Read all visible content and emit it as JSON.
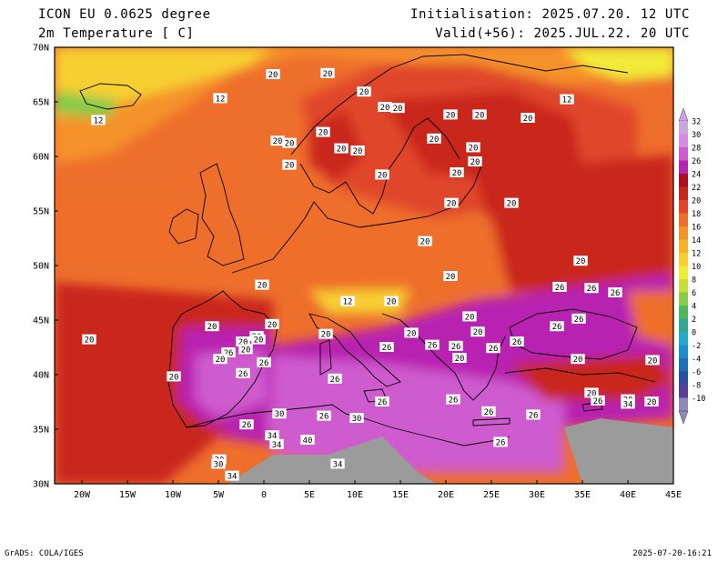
{
  "header": {
    "model": "ICON EU 0.0625 degree",
    "variable": "2m Temperature [ C]",
    "init": "Initialisation: 2025.07.20. 12 UTC",
    "valid": "Valid(+56): 2025.JUL.22. 20 UTC"
  },
  "lat_labels": [
    "70N",
    "65N",
    "60N",
    "55N",
    "50N",
    "45N",
    "40N",
    "35N",
    "30N"
  ],
  "lon_labels": [
    "20W",
    "15W",
    "10W",
    "5W",
    "0",
    "5E",
    "10E",
    "15E",
    "20E",
    "25E",
    "30E",
    "35E",
    "40E",
    "45E"
  ],
  "colorbar": {
    "labels": [
      "32",
      "30",
      "28",
      "26",
      "24",
      "22",
      "20",
      "18",
      "16",
      "14",
      "12",
      "10",
      "8",
      "6",
      "4",
      "2",
      "0",
      "-2",
      "-4",
      "-6",
      "-8",
      "-10"
    ],
    "colors": [
      "#c9a6de",
      "#d98ae0",
      "#cf5ccf",
      "#b824b0",
      "#ad0f1f",
      "#c9261c",
      "#e0472a",
      "#ee6e2c",
      "#f5922c",
      "#f6b12d",
      "#f6cf30",
      "#f1ea38",
      "#c8df3a",
      "#88cb4a",
      "#4fb85e",
      "#2fa890",
      "#27a8c8",
      "#1c8ed0",
      "#1c6fb8",
      "#2a4f9e",
      "#5a3f96",
      "#8e8ab8"
    ]
  },
  "contour_labels": [
    {
      "text": "20",
      "lon": 1,
      "lat": 67.5
    },
    {
      "text": "20",
      "lon": 7,
      "lat": 67.6
    },
    {
      "text": "12",
      "lon": -4.8,
      "lat": 65.3
    },
    {
      "text": "12",
      "lon": -18.2,
      "lat": 63.3
    },
    {
      "text": "12",
      "lon": 33.3,
      "lat": 65.2
    },
    {
      "text": "20",
      "lon": 11,
      "lat": 65.9
    },
    {
      "text": "20",
      "lon": 13.3,
      "lat": 64.5
    },
    {
      "text": "20",
      "lon": 14.7,
      "lat": 64.4
    },
    {
      "text": "20",
      "lon": 20.5,
      "lat": 63.8
    },
    {
      "text": "20",
      "lon": 23.7,
      "lat": 63.8
    },
    {
      "text": "20",
      "lon": 29,
      "lat": 63.5
    },
    {
      "text": "20",
      "lon": 6.5,
      "lat": 62.2
    },
    {
      "text": "20",
      "lon": 1.5,
      "lat": 61.4
    },
    {
      "text": "20",
      "lon": 2.8,
      "lat": 61.2
    },
    {
      "text": "20",
      "lon": 8.5,
      "lat": 60.7
    },
    {
      "text": "20",
      "lon": 10.3,
      "lat": 60.5
    },
    {
      "text": "20",
      "lon": 18.7,
      "lat": 61.6
    },
    {
      "text": "20",
      "lon": 23,
      "lat": 60.8
    },
    {
      "text": "20",
      "lon": 2.8,
      "lat": 59.2
    },
    {
      "text": "20",
      "lon": 13,
      "lat": 58.3
    },
    {
      "text": "20",
      "lon": 21.2,
      "lat": 58.5
    },
    {
      "text": "20",
      "lon": 23.2,
      "lat": 59.5
    },
    {
      "text": "20",
      "lon": 20.6,
      "lat": 55.7
    },
    {
      "text": "20",
      "lon": 27.2,
      "lat": 55.7
    },
    {
      "text": "20",
      "lon": 17.7,
      "lat": 52.2
    },
    {
      "text": "20",
      "lon": 34.8,
      "lat": 50.4
    },
    {
      "text": "20",
      "lon": 20.5,
      "lat": 49
    },
    {
      "text": "20",
      "lon": -0.2,
      "lat": 48.2
    },
    {
      "text": "12",
      "lon": 9.2,
      "lat": 46.7
    },
    {
      "text": "20",
      "lon": 14,
      "lat": 46.7
    },
    {
      "text": "26",
      "lon": 32.5,
      "lat": 48
    },
    {
      "text": "26",
      "lon": 36,
      "lat": 47.9
    },
    {
      "text": "26",
      "lon": 38.6,
      "lat": 47.5
    },
    {
      "text": "20",
      "lon": 22.6,
      "lat": 45.3
    },
    {
      "text": "26",
      "lon": 32.2,
      "lat": 44.4
    },
    {
      "text": "26",
      "lon": 34.6,
      "lat": 45.1
    },
    {
      "text": "20",
      "lon": -5.7,
      "lat": 44.4
    },
    {
      "text": "20",
      "lon": 0.9,
      "lat": 44.6
    },
    {
      "text": "20",
      "lon": 6.8,
      "lat": 43.7
    },
    {
      "text": "20",
      "lon": 16.2,
      "lat": 43.8
    },
    {
      "text": "20",
      "lon": 23.5,
      "lat": 43.9
    },
    {
      "text": "20",
      "lon": -0.8,
      "lat": 43.5
    },
    {
      "text": "20",
      "lon": -19.2,
      "lat": 43.2
    },
    {
      "text": "20",
      "lon": -2.3,
      "lat": 43
    },
    {
      "text": "20",
      "lon": -0.6,
      "lat": 43.2
    },
    {
      "text": "26",
      "lon": 13.5,
      "lat": 42.5
    },
    {
      "text": "26",
      "lon": 18.5,
      "lat": 42.7
    },
    {
      "text": "26",
      "lon": 21.1,
      "lat": 42.6
    },
    {
      "text": "26",
      "lon": 25.2,
      "lat": 42.4
    },
    {
      "text": "26",
      "lon": 27.8,
      "lat": 43
    },
    {
      "text": "20",
      "lon": -2,
      "lat": 42.3
    },
    {
      "text": "26",
      "lon": -3.9,
      "lat": 42
    },
    {
      "text": "26",
      "lon": 0,
      "lat": 41.1
    },
    {
      "text": "20",
      "lon": 21.5,
      "lat": 41.5
    },
    {
      "text": "20",
      "lon": -4.8,
      "lat": 41.4
    },
    {
      "text": "20",
      "lon": 34.5,
      "lat": 41.4
    },
    {
      "text": "20",
      "lon": 42.7,
      "lat": 41.3
    },
    {
      "text": "20",
      "lon": -9.9,
      "lat": 39.8
    },
    {
      "text": "26",
      "lon": -2.3,
      "lat": 40.1
    },
    {
      "text": "26",
      "lon": 7.8,
      "lat": 39.6
    },
    {
      "text": "20",
      "lon": 36,
      "lat": 38.3
    },
    {
      "text": "26",
      "lon": 13,
      "lat": 37.5
    },
    {
      "text": "26",
      "lon": 20.8,
      "lat": 37.7
    },
    {
      "text": "26",
      "lon": 36.7,
      "lat": 37.6
    },
    {
      "text": "20",
      "lon": 40,
      "lat": 37.7
    },
    {
      "text": "34",
      "lon": 40,
      "lat": 37.3
    },
    {
      "text": "20",
      "lon": 42.6,
      "lat": 37.5
    },
    {
      "text": "26",
      "lon": 24.7,
      "lat": 36.6
    },
    {
      "text": "26",
      "lon": 29.6,
      "lat": 36.3
    },
    {
      "text": "30",
      "lon": 1.7,
      "lat": 36.4
    },
    {
      "text": "26",
      "lon": 6.6,
      "lat": 36.2
    },
    {
      "text": "30",
      "lon": 10.2,
      "lat": 36
    },
    {
      "text": "26",
      "lon": -1.9,
      "lat": 35.4
    },
    {
      "text": "34",
      "lon": 0.9,
      "lat": 34.4
    },
    {
      "text": "34",
      "lon": 1.4,
      "lat": 33.6
    },
    {
      "text": "40",
      "lon": 4.8,
      "lat": 34
    },
    {
      "text": "26",
      "lon": 26,
      "lat": 33.8
    },
    {
      "text": "30",
      "lon": -4.9,
      "lat": 32.2
    },
    {
      "text": "30",
      "lon": -5,
      "lat": 31.8
    },
    {
      "text": "34",
      "lon": -3.5,
      "lat": 30.7
    },
    {
      "text": "34",
      "lon": 8.1,
      "lat": 31.8
    }
  ],
  "footer": {
    "left": "GrADS: COLA/IGES",
    "right": "2025-07-20-16:21"
  }
}
